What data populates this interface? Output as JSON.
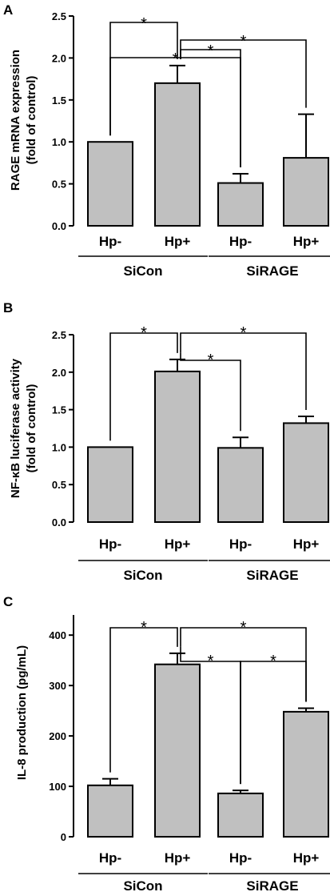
{
  "chart_data": [
    {
      "type": "bar",
      "panel": "A",
      "ylabel_line1": "RAGE mRNA expression",
      "ylabel_line2": "(fold of control)",
      "categories": [
        "Hp-",
        "Hp+",
        "Hp-",
        "Hp+"
      ],
      "groups": [
        {
          "label": "SiCon",
          "members": [
            0,
            1
          ]
        },
        {
          "label": "SiRAGE",
          "members": [
            2,
            3
          ]
        }
      ],
      "values": [
        1.0,
        1.7,
        0.51,
        0.81
      ],
      "errors": [
        0,
        0.21,
        0.11,
        0.52
      ],
      "ylim": [
        0,
        2.5
      ],
      "yticks": [
        "0.0",
        "0.5",
        "1.0",
        "1.5",
        "2.0",
        "2.5"
      ],
      "significance": [
        {
          "from": 0,
          "to": 1,
          "label": "*"
        },
        {
          "from": 1,
          "to": 3,
          "label": "*"
        },
        {
          "from": 0,
          "to": 2,
          "label": "*"
        },
        {
          "from": 1,
          "to": 2,
          "label": "*"
        }
      ]
    },
    {
      "type": "bar",
      "panel": "B",
      "ylabel_line1": "NF-κB luciferase activity",
      "ylabel_line2": "(fold of control)",
      "categories": [
        "Hp-",
        "Hp+",
        "Hp-",
        "Hp+"
      ],
      "groups": [
        {
          "label": "SiCon",
          "members": [
            0,
            1
          ]
        },
        {
          "label": "SiRAGE",
          "members": [
            2,
            3
          ]
        }
      ],
      "values": [
        1.0,
        2.01,
        0.99,
        1.32
      ],
      "errors": [
        0,
        0.16,
        0.14,
        0.09
      ],
      "ylim": [
        0,
        2.5
      ],
      "yticks": [
        "0.0",
        "0.5",
        "1.0",
        "1.5",
        "2.0",
        "2.5"
      ],
      "significance": [
        {
          "from": 0,
          "to": 1,
          "label": "*"
        },
        {
          "from": 1,
          "to": 3,
          "label": "*"
        },
        {
          "from": 1,
          "to": 2,
          "label": "*"
        }
      ]
    },
    {
      "type": "bar",
      "panel": "C",
      "ylabel_line1": "IL-8 production (pg/mL)",
      "ylabel_line2": "",
      "categories": [
        "Hp-",
        "Hp+",
        "Hp-",
        "Hp+"
      ],
      "groups": [
        {
          "label": "SiCon",
          "members": [
            0,
            1
          ]
        },
        {
          "label": "SiRAGE",
          "members": [
            2,
            3
          ]
        }
      ],
      "values": [
        102,
        342,
        86,
        248
      ],
      "errors": [
        13,
        22,
        6,
        7
      ],
      "ylim": [
        0,
        440
      ],
      "yticks": [
        "0",
        "100",
        "200",
        "300",
        "400"
      ],
      "significance": [
        {
          "from": 0,
          "to": 1,
          "label": "*"
        },
        {
          "from": 1,
          "to": 3,
          "label": "*"
        },
        {
          "from": 1,
          "to": 2,
          "label": "*"
        },
        {
          "from": 2,
          "to": 3,
          "label": "*"
        }
      ]
    }
  ],
  "colors": {
    "bar_fill": "#c0c0c0",
    "stroke": "#000000"
  }
}
